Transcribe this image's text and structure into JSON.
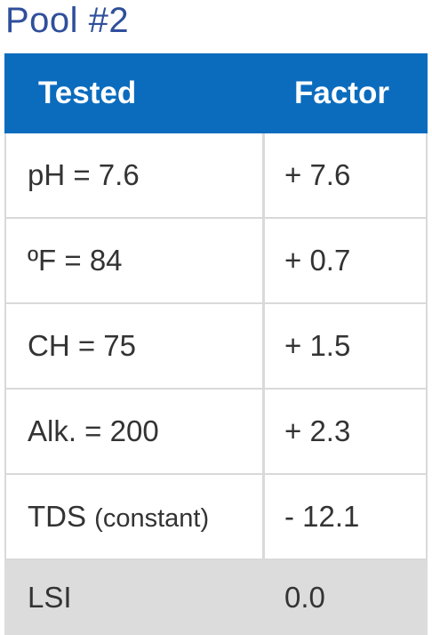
{
  "title": "Pool #2",
  "table": {
    "headers": {
      "tested": "Tested",
      "factor": "Factor"
    },
    "rows": [
      {
        "tested": "pH = 7.6",
        "factor": "+ 7.6"
      },
      {
        "tested": "ºF = 84",
        "factor": "+ 0.7"
      },
      {
        "tested": "CH = 75",
        "factor": "+ 1.5"
      },
      {
        "tested": "Alk. = 200",
        "factor": "+ 2.3"
      },
      {
        "tested_main": "TDS",
        "tested_note": "(constant)",
        "factor": "- 12.1"
      }
    ],
    "result": {
      "label": "LSI",
      "value": "0.0"
    }
  }
}
